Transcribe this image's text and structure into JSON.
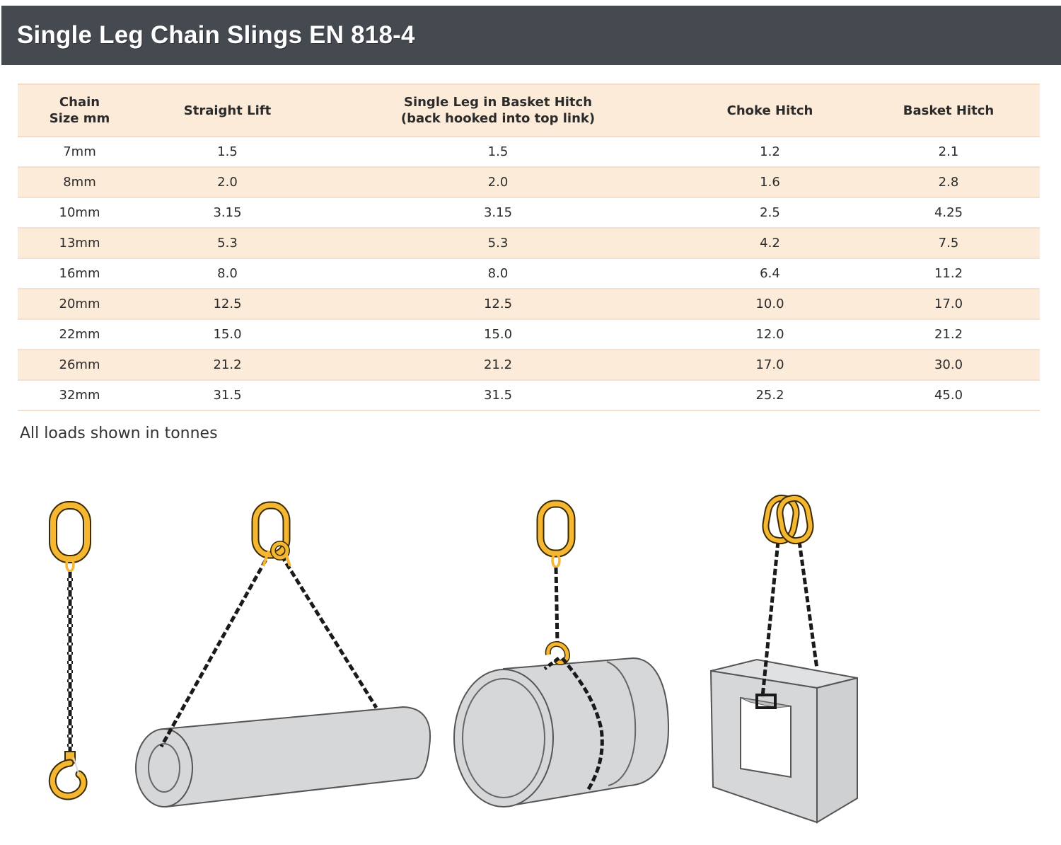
{
  "header": {
    "title": "Single Leg Chain Slings EN 818-4"
  },
  "table": {
    "columns": [
      "Chain\nSize mm",
      "Straight Lift",
      "Single Leg in Basket Hitch\n(back hooked into top link)",
      "Choke Hitch",
      "Basket Hitch"
    ],
    "rows": [
      [
        "7mm",
        "1.5",
        "1.5",
        "1.2",
        "2.1"
      ],
      [
        "8mm",
        "2.0",
        "2.0",
        "1.6",
        "2.8"
      ],
      [
        "10mm",
        "3.15",
        "3.15",
        "2.5",
        "4.25"
      ],
      [
        "13mm",
        "5.3",
        "5.3",
        "4.2",
        "7.5"
      ],
      [
        "16mm",
        "8.0",
        "8.0",
        "6.4",
        "11.2"
      ],
      [
        "20mm",
        "12.5",
        "12.5",
        "10.0",
        "17.0"
      ],
      [
        "22mm",
        "15.0",
        "15.0",
        "12.0",
        "21.2"
      ],
      [
        "26mm",
        "21.2",
        "21.2",
        "17.0",
        "30.0"
      ],
      [
        "32mm",
        "31.5",
        "31.5",
        "25.2",
        "45.0"
      ]
    ]
  },
  "note": "All loads shown in tonnes",
  "colors": {
    "header_bg": "#454a50",
    "row_highlight": "#fdebd9",
    "fitting_yellow": "#f5b731",
    "load_grey": "#d6d7d9",
    "chain_black": "#1a1a1a"
  },
  "illustrations": [
    {
      "name": "straight-lift",
      "icon": "single-leg-sling-with-hook"
    },
    {
      "name": "basket-hitch-single-leg",
      "icon": "sling-over-pipe"
    },
    {
      "name": "choke-hitch",
      "icon": "sling-choked-around-cylinder"
    },
    {
      "name": "basket-hitch",
      "icon": "sling-through-square-block"
    }
  ]
}
